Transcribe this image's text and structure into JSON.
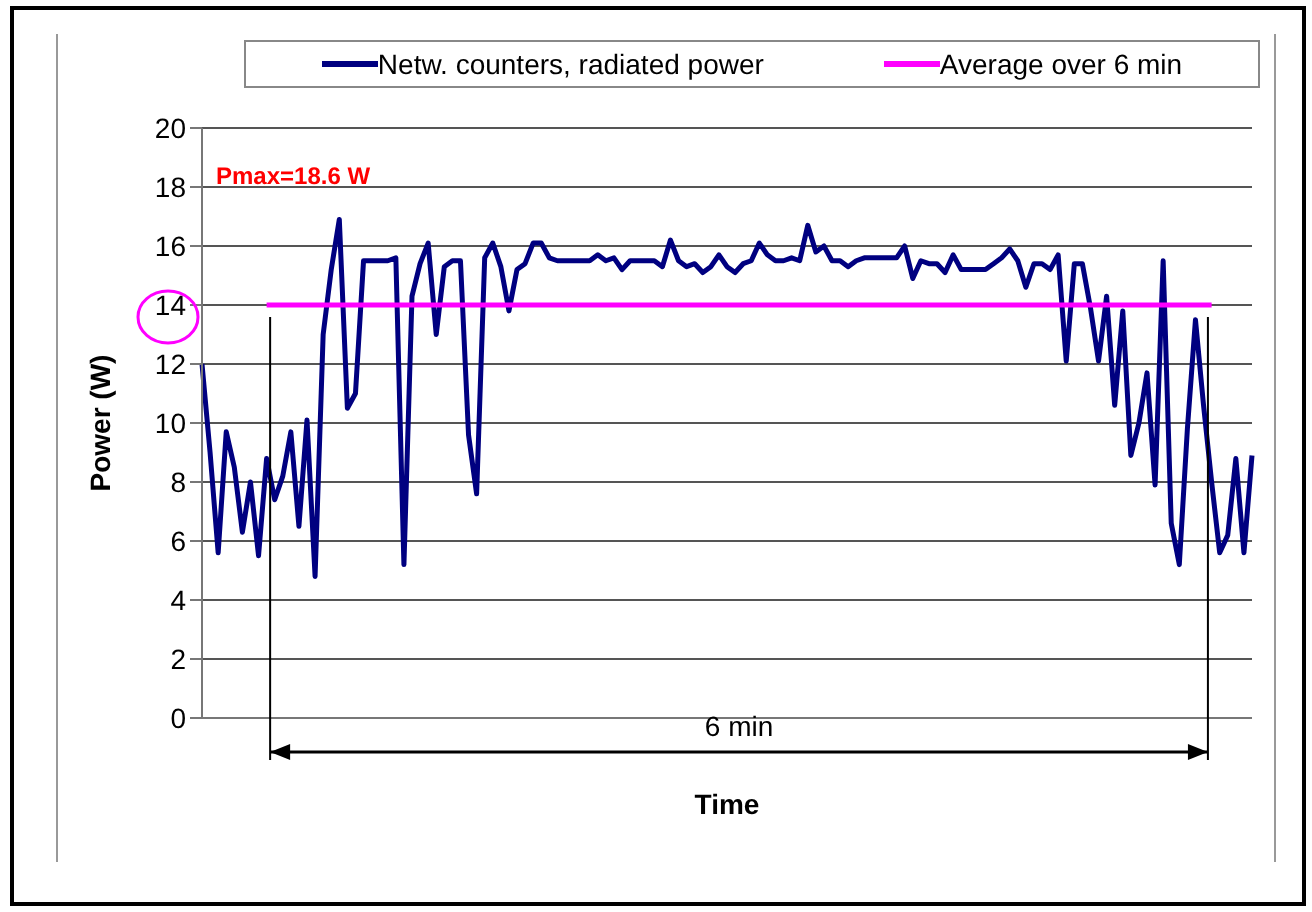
{
  "chart_data": {
    "type": "line",
    "xlabel": "Time",
    "ylabel": "Power (W)",
    "categories": [
      null,
      null,
      null,
      null,
      null,
      null,
      null,
      null,
      null,
      null,
      null,
      null,
      null,
      null,
      null,
      null,
      null,
      null,
      null,
      null,
      null,
      null,
      null,
      null,
      null,
      null,
      null,
      null,
      null,
      null,
      null,
      null,
      null,
      null,
      null,
      null,
      null,
      null,
      null,
      null,
      null,
      null,
      null,
      null,
      null,
      null,
      null,
      null,
      null,
      null,
      null,
      null,
      null,
      null,
      null,
      null,
      null,
      null,
      null,
      null,
      null,
      null,
      null,
      null,
      null,
      null,
      null,
      null,
      null,
      null,
      null,
      null,
      null,
      null,
      null,
      null,
      null,
      null,
      null,
      null,
      null,
      null,
      null,
      null,
      null,
      null,
      null,
      null,
      null,
      null,
      null,
      null,
      null,
      null,
      null,
      null,
      null,
      null,
      null,
      null,
      null,
      null,
      null,
      null,
      null,
      null,
      null,
      null,
      null,
      null,
      null,
      null,
      null,
      null,
      null,
      null,
      null,
      null,
      null,
      null,
      null,
      null,
      null,
      null,
      null,
      null,
      null,
      null,
      null,
      null,
      null
    ],
    "series": [
      {
        "name": "Netw. counters, radiated power",
        "color": "#000080",
        "values": [
          12.0,
          9.0,
          5.6,
          9.7,
          8.5,
          6.3,
          8.0,
          5.5,
          8.8,
          7.4,
          8.2,
          9.7,
          6.5,
          10.1,
          4.8,
          13.0,
          15.2,
          16.9,
          10.5,
          11.0,
          15.5,
          15.5,
          15.5,
          15.5,
          15.6,
          5.2,
          14.3,
          15.4,
          16.1,
          13.0,
          15.3,
          15.5,
          15.5,
          9.6,
          7.6,
          15.6,
          16.1,
          15.3,
          13.8,
          15.2,
          15.4,
          16.1,
          16.1,
          15.6,
          15.5,
          15.5,
          15.5,
          15.5,
          15.5,
          15.7,
          15.5,
          15.6,
          15.2,
          15.5,
          15.5,
          15.5,
          15.5,
          15.3,
          16.2,
          15.5,
          15.3,
          15.4,
          15.1,
          15.3,
          15.7,
          15.3,
          15.1,
          15.4,
          15.5,
          16.1,
          15.7,
          15.5,
          15.5,
          15.6,
          15.5,
          16.7,
          15.8,
          16.0,
          15.5,
          15.5,
          15.3,
          15.5,
          15.6,
          15.6,
          15.6,
          15.6,
          15.6,
          16.0,
          14.9,
          15.5,
          15.4,
          15.4,
          15.1,
          15.7,
          15.2,
          15.2,
          15.2,
          15.2,
          15.4,
          15.6,
          15.9,
          15.5,
          14.6,
          15.4,
          15.4,
          15.2,
          15.7,
          12.1,
          15.4,
          15.4,
          13.9,
          12.1,
          14.3,
          10.6,
          13.8,
          8.9,
          10.0,
          11.7,
          7.9,
          15.5,
          6.6,
          5.2,
          9.8,
          13.5,
          10.6,
          8.0,
          5.6,
          6.2,
          8.8,
          5.6,
          8.9
        ]
      },
      {
        "name": "Average over 6 min",
        "color": "#ff00ff",
        "values": [
          null,
          null,
          null,
          null,
          null,
          null,
          null,
          null,
          14,
          14,
          14,
          14,
          14,
          14,
          14,
          14,
          14,
          14,
          14,
          14,
          14,
          14,
          14,
          14,
          14,
          14,
          14,
          14,
          14,
          14,
          14,
          14,
          14,
          14,
          14,
          14,
          14,
          14,
          14,
          14,
          14,
          14,
          14,
          14,
          14,
          14,
          14,
          14,
          14,
          14,
          14,
          14,
          14,
          14,
          14,
          14,
          14,
          14,
          14,
          14,
          14,
          14,
          14,
          14,
          14,
          14,
          14,
          14,
          14,
          14,
          14,
          14,
          14,
          14,
          14,
          14,
          14,
          14,
          14,
          14,
          14,
          14,
          14,
          14,
          14,
          14,
          14,
          14,
          14,
          14,
          14,
          14,
          14,
          14,
          14,
          14,
          14,
          14,
          14,
          14,
          14,
          14,
          14,
          14,
          14,
          14,
          14,
          14,
          14,
          14,
          14,
          14,
          14,
          14,
          14,
          14,
          14,
          14,
          14,
          14,
          14,
          14,
          14,
          14,
          14,
          14,
          null,
          null,
          null,
          null,
          null
        ]
      }
    ],
    "ylim": [
      0,
      20
    ],
    "yticks": [
      0,
      2,
      4,
      6,
      8,
      10,
      12,
      14,
      16,
      18,
      20
    ],
    "grid": "y",
    "legend": "top",
    "marker": "none",
    "annotations": [
      "Pmax=18.6 W",
      "6 min"
    ]
  }
}
